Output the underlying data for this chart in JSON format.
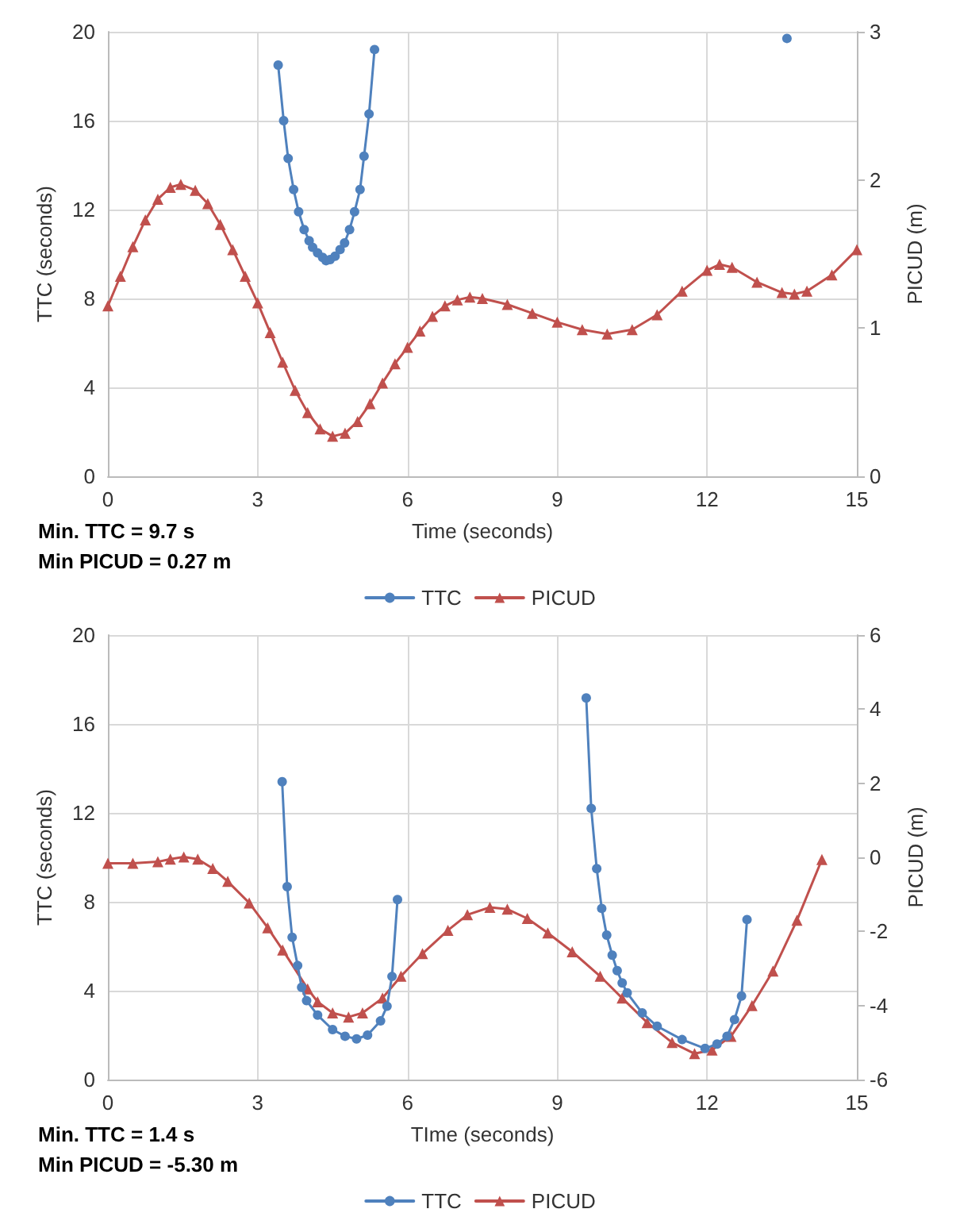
{
  "chart_data": [
    {
      "type": "line",
      "xlabel": "Time (seconds)",
      "ylabel": "TTC (seconds)",
      "y2label": "PICUD (m)",
      "annotations": [
        "Min. TTC = 9.7 s",
        "Min PICUD = 0.27 m"
      ],
      "xlim": [
        0,
        15
      ],
      "xticks": [
        0,
        3,
        6,
        9,
        12,
        15
      ],
      "ylim": [
        0,
        20
      ],
      "yticks": [
        0,
        4,
        8,
        12,
        16,
        20
      ],
      "y2lim": [
        0,
        3
      ],
      "y2ticks": [
        0,
        1,
        2,
        3
      ],
      "grid": true,
      "legend": "bottom",
      "series": [
        {
          "name": "TTC",
          "color": "#4f81bd",
          "marker": "circle",
          "x": [
            3.41,
            3.52,
            3.61,
            3.72,
            3.82,
            3.93,
            4.03,
            4.1,
            4.2,
            4.3,
            4.37,
            4.45,
            4.55,
            4.65,
            4.74,
            4.84,
            4.94,
            5.05,
            5.13,
            5.23,
            5.34,
            9.0,
            13.6
          ],
          "values": [
            18.5,
            16.0,
            14.3,
            12.9,
            11.9,
            11.1,
            10.6,
            10.3,
            10.05,
            9.85,
            9.7,
            9.75,
            9.9,
            10.2,
            10.5,
            11.1,
            11.9,
            12.9,
            14.4,
            16.3,
            19.2,
            null,
            19.7
          ]
        },
        {
          "name": "PICUD",
          "color": "#c0504d",
          "marker": "triangle",
          "axis": "y2",
          "x": [
            0,
            0.25,
            0.5,
            0.75,
            1.0,
            1.25,
            1.46,
            1.75,
            2.0,
            2.25,
            2.5,
            2.75,
            3.0,
            3.25,
            3.5,
            3.75,
            4.0,
            4.25,
            4.5,
            4.75,
            5.0,
            5.25,
            5.5,
            5.75,
            6.0,
            6.25,
            6.5,
            6.75,
            7.0,
            7.25,
            7.5,
            8.0,
            8.5,
            9.0,
            9.5,
            10.0,
            10.5,
            11.0,
            11.5,
            12.0,
            12.25,
            12.5,
            13.0,
            13.5,
            13.75,
            14.0,
            14.5,
            15
          ],
          "values": [
            1.15,
            1.35,
            1.55,
            1.73,
            1.87,
            1.95,
            1.97,
            1.93,
            1.84,
            1.7,
            1.53,
            1.35,
            1.17,
            0.97,
            0.77,
            0.58,
            0.43,
            0.32,
            0.27,
            0.29,
            0.37,
            0.49,
            0.63,
            0.76,
            0.87,
            0.98,
            1.08,
            1.15,
            1.19,
            1.21,
            1.2,
            1.16,
            1.1,
            1.04,
            0.99,
            0.96,
            0.99,
            1.09,
            1.25,
            1.39,
            1.43,
            1.41,
            1.31,
            1.24,
            1.23,
            1.25,
            1.36,
            1.53
          ]
        }
      ]
    },
    {
      "type": "line",
      "xlabel": "TIme (seconds)",
      "ylabel": "TTC (seconds)",
      "y2label": "PICUD (m)",
      "annotations": [
        "Min. TTC = 1.4 s",
        "Min PICUD = -5.30 m"
      ],
      "xlim": [
        0,
        15
      ],
      "xticks": [
        0,
        3,
        6,
        9,
        12,
        15
      ],
      "ylim": [
        0,
        20
      ],
      "yticks": [
        0,
        4,
        8,
        12,
        16,
        20
      ],
      "y2lim": [
        -6,
        6
      ],
      "y2ticks": [
        -6,
        -4,
        -2,
        0,
        2,
        4,
        6
      ],
      "grid": true,
      "legend": "bottom",
      "series": [
        {
          "name": "TTC",
          "color": "#4f81bd",
          "marker": "circle",
          "x": [
            3.49,
            3.59,
            3.69,
            3.8,
            3.88,
            3.98,
            4.2,
            4.5,
            4.75,
            4.98,
            5.2,
            5.46,
            5.59,
            5.69,
            5.8,
            7.5,
            9.58,
            9.68,
            9.79,
            9.89,
            9.99,
            10.1,
            10.2,
            10.3,
            10.4,
            10.7,
            11.0,
            11.5,
            11.96,
            12.2,
            12.4,
            12.55,
            12.69,
            12.8
          ],
          "values": [
            13.4,
            8.68,
            6.4,
            5.13,
            4.15,
            3.55,
            2.9,
            2.25,
            1.95,
            1.83,
            2.0,
            2.64,
            3.3,
            4.64,
            8.1,
            null,
            17.17,
            12.2,
            9.49,
            7.7,
            6.5,
            5.6,
            4.9,
            4.35,
            3.9,
            3.0,
            2.4,
            1.8,
            1.4,
            1.6,
            1.95,
            2.7,
            3.76,
            7.2
          ]
        },
        {
          "name": "PICUD",
          "color": "#c0504d",
          "marker": "triangle",
          "axis": "y2",
          "x": [
            0,
            0.5,
            1.0,
            1.25,
            1.52,
            1.8,
            2.1,
            2.4,
            2.83,
            3.2,
            3.5,
            4.0,
            4.2,
            4.5,
            4.82,
            5.1,
            5.5,
            5.87,
            6.3,
            6.81,
            7.2,
            7.65,
            8.0,
            8.4,
            8.81,
            9.3,
            9.86,
            10.3,
            10.8,
            11.3,
            11.75,
            12.1,
            12.48,
            12.9,
            13.32,
            13.8,
            14.3
          ],
          "values": [
            -0.16,
            -0.16,
            -0.12,
            -0.05,
            0.01,
            -0.05,
            -0.3,
            -0.65,
            -1.23,
            -1.9,
            -2.5,
            -3.55,
            -3.9,
            -4.2,
            -4.31,
            -4.2,
            -3.8,
            -3.21,
            -2.6,
            -1.97,
            -1.55,
            -1.35,
            -1.4,
            -1.65,
            -2.04,
            -2.55,
            -3.21,
            -3.8,
            -4.46,
            -5.0,
            -5.3,
            -5.2,
            -4.83,
            -4.0,
            -3.07,
            -1.7,
            -0.06
          ]
        }
      ]
    }
  ]
}
